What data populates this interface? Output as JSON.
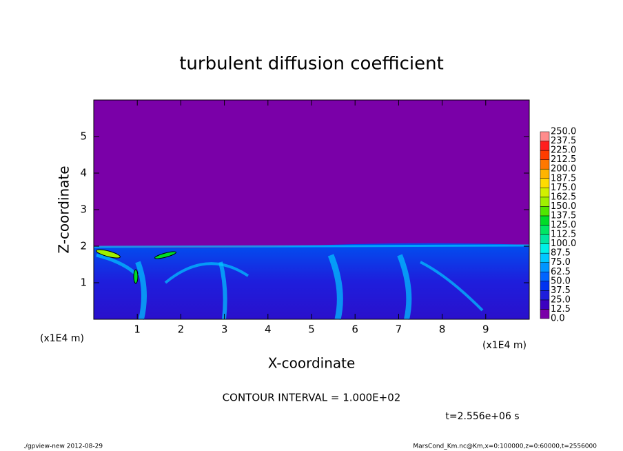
{
  "chart_data": {
    "type": "contour",
    "title": "turbulent diffusion coefficient",
    "xlabel": "X-coordinate",
    "ylabel": "Z-coordinate",
    "x_unit_left": "(x1E4 m)",
    "x_unit_right": "(x1E4 m)",
    "xlim": [
      0,
      10
    ],
    "xticks": [
      1,
      2,
      3,
      4,
      5,
      6,
      7,
      8,
      9
    ],
    "ylim": [
      0,
      6
    ],
    "yticks": [
      1,
      2,
      3,
      4,
      5
    ],
    "contour_note": "CONTOUR INTERVAL = 1.000E+02",
    "time_label": "t=2.556e+06 s",
    "footer_left": "./gpview-new  2012-08-29",
    "footer_right": "MarsCond_Km.nc@Km,x=0:100000,z=0:60000,t=2556000",
    "colorbar": {
      "levels": [
        {
          "value": 0,
          "label": "0.0"
        },
        {
          "value": 12.5,
          "label": "12.5"
        },
        {
          "value": 25,
          "label": "25.0"
        },
        {
          "value": 37.5,
          "label": "37.5"
        },
        {
          "value": 50,
          "label": "50.0"
        },
        {
          "value": 62.5,
          "label": "62.5"
        },
        {
          "value": 75,
          "label": "75.0"
        },
        {
          "value": 87.5,
          "label": "87.5"
        },
        {
          "value": 100,
          "label": "100.0"
        },
        {
          "value": 112.5,
          "label": "112.5"
        },
        {
          "value": 125,
          "label": "125.0"
        },
        {
          "value": 137.5,
          "label": "137.5"
        },
        {
          "value": 150,
          "label": "150.0"
        },
        {
          "value": 162.5,
          "label": "162.5"
        },
        {
          "value": 175,
          "label": "175.0"
        },
        {
          "value": 187.5,
          "label": "187.5"
        },
        {
          "value": 200,
          "label": "200.0"
        },
        {
          "value": 212.5,
          "label": "212.5"
        },
        {
          "value": 225,
          "label": "225.0"
        },
        {
          "value": 237.5,
          "label": "237.5"
        },
        {
          "value": 250,
          "label": "250.0"
        }
      ],
      "colors": [
        "#7a00a8",
        "#3c00c0",
        "#1e1edc",
        "#0032f0",
        "#0064ff",
        "#0096ff",
        "#00c8ff",
        "#00f0e6",
        "#00e6a0",
        "#00e664",
        "#00dc28",
        "#50e600",
        "#a0f000",
        "#d2f000",
        "#ffdc00",
        "#ffb400",
        "#ff7800",
        "#ff3c00",
        "#ff1e1e",
        "#ff8c8c"
      ]
    }
  }
}
